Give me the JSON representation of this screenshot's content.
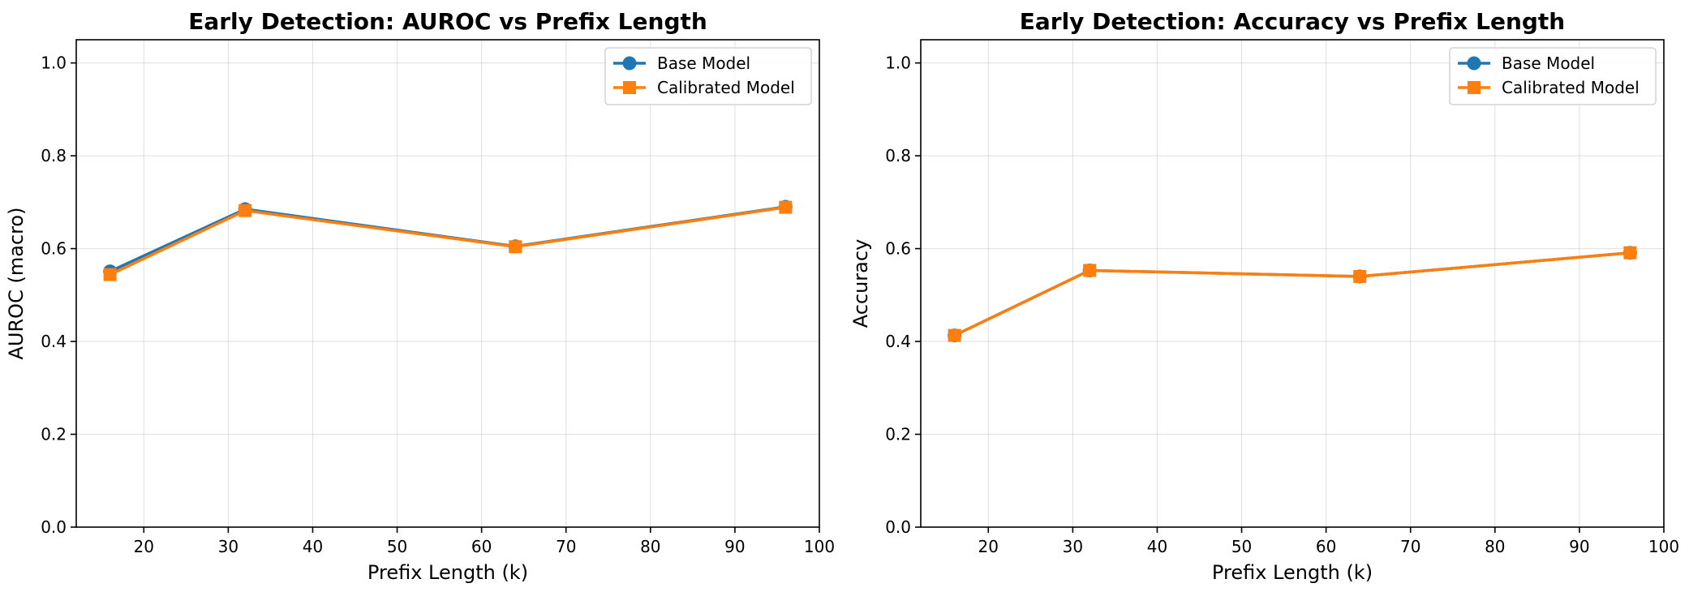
{
  "chart_data": [
    {
      "type": "line",
      "title": "Early Detection: AUROC vs Prefix Length",
      "xlabel": "Prefix Length (k)",
      "ylabel": "AUROC (macro)",
      "xlim": [
        12,
        100
      ],
      "ylim": [
        0.0,
        1.05
      ],
      "xticks": [
        20,
        30,
        40,
        50,
        60,
        70,
        80,
        90,
        100
      ],
      "yticks": [
        0.0,
        0.2,
        0.4,
        0.6,
        0.8,
        1.0
      ],
      "grid": true,
      "legend_position": "top-right",
      "x": [
        16,
        32,
        64,
        96
      ],
      "series": [
        {
          "name": "Base Model",
          "values": [
            0.551,
            0.685,
            0.605,
            0.69
          ],
          "color": "#1f77b4",
          "marker": "circle"
        },
        {
          "name": "Calibrated Model",
          "values": [
            0.544,
            0.682,
            0.604,
            0.689
          ],
          "color": "#ff7f0e",
          "marker": "square"
        }
      ]
    },
    {
      "type": "line",
      "title": "Early Detection: Accuracy vs Prefix Length",
      "xlabel": "Prefix Length (k)",
      "ylabel": "Accuracy",
      "xlim": [
        12,
        100
      ],
      "ylim": [
        0.0,
        1.05
      ],
      "xticks": [
        20,
        30,
        40,
        50,
        60,
        70,
        80,
        90,
        100
      ],
      "yticks": [
        0.0,
        0.2,
        0.4,
        0.6,
        0.8,
        1.0
      ],
      "grid": true,
      "legend_position": "top-right",
      "x": [
        16,
        32,
        64,
        96
      ],
      "series": [
        {
          "name": "Base Model",
          "values": [
            0.413,
            0.553,
            0.54,
            0.591
          ],
          "color": "#1f77b4",
          "marker": "circle"
        },
        {
          "name": "Calibrated Model",
          "values": [
            0.413,
            0.553,
            0.54,
            0.591
          ],
          "color": "#ff7f0e",
          "marker": "square"
        }
      ]
    }
  ]
}
